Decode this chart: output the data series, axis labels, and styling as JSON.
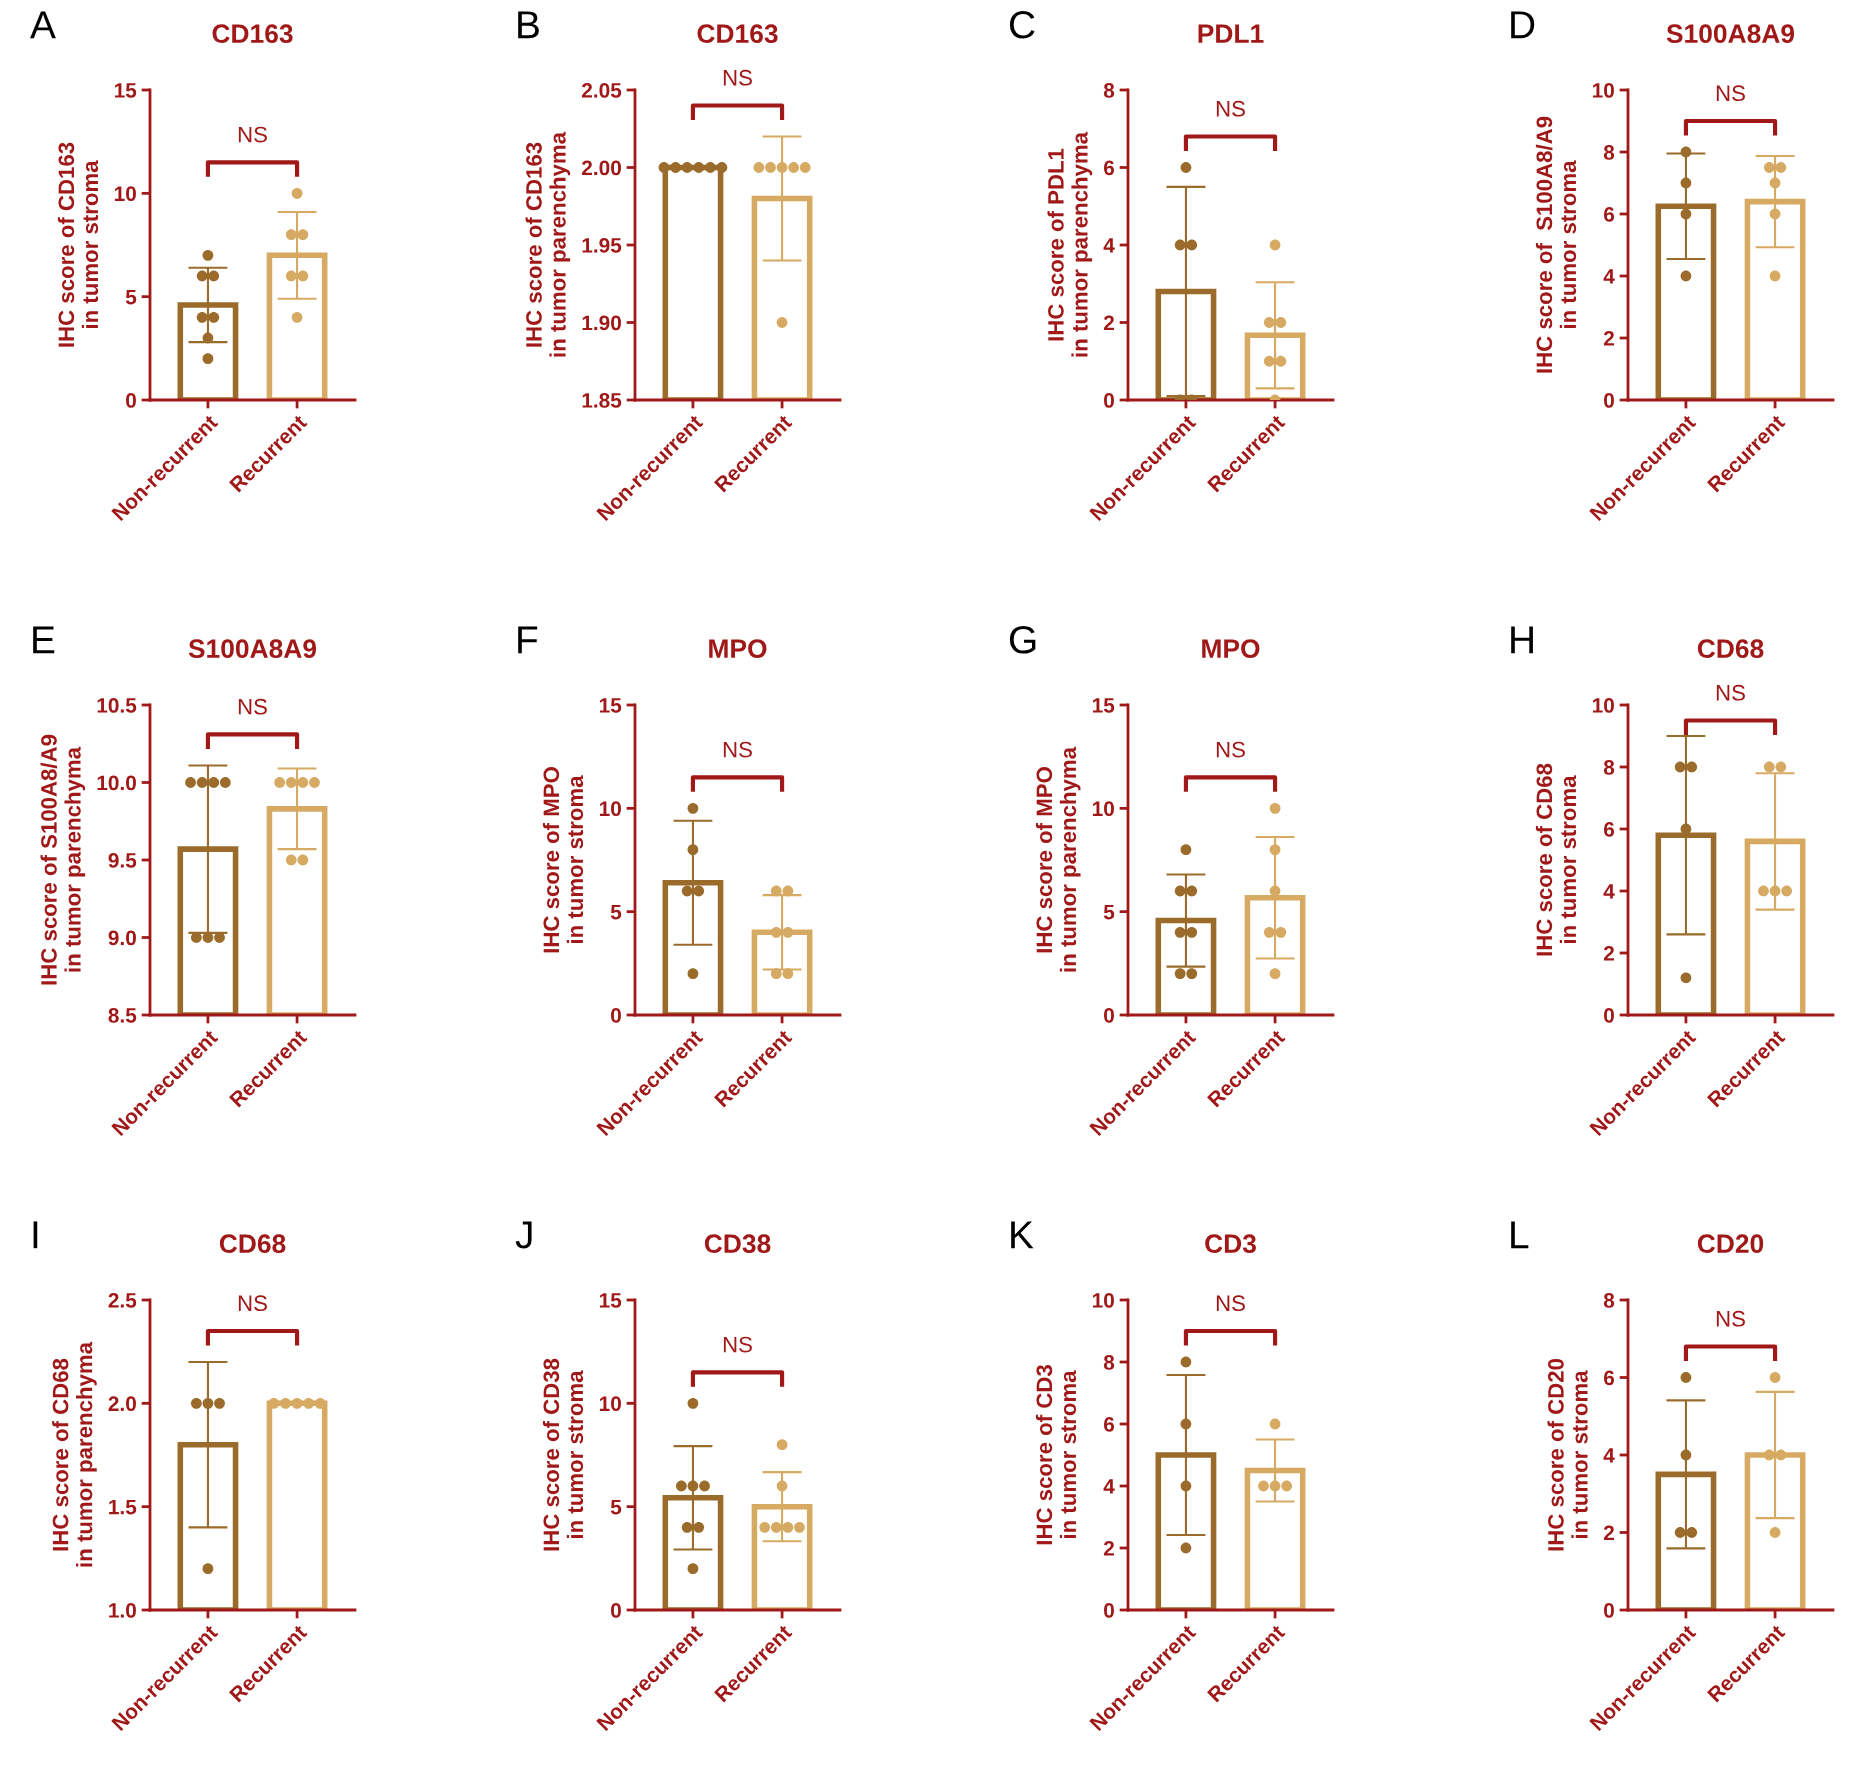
{
  "chart_data": [
    {
      "type": "bar",
      "title": "CD163",
      "ylabel": "IHC score of CD163\nin tumor stroma",
      "annotations": [
        "A",
        "NS"
      ],
      "categories": [
        "Non-recurrent",
        "Recurrent"
      ],
      "ylim": [
        0,
        15
      ],
      "yticks": [
        0,
        5,
        10,
        15
      ],
      "series": [
        {
          "type": "bar",
          "values": [
            4.6,
            7.0
          ],
          "errors": [
            1.8,
            2.1
          ],
          "colors": [
            "#9a6b2a",
            "#d6aa62"
          ]
        },
        {
          "type": "scatter",
          "color": "#9a6b2a",
          "x": [
            "Non-recurrent",
            "Non-recurrent",
            "Non-recurrent",
            "Non-recurrent",
            "Non-recurrent",
            "Non-recurrent",
            "Non-recurrent"
          ],
          "values": [
            7,
            6,
            6,
            4,
            4,
            3,
            2
          ]
        },
        {
          "type": "scatter",
          "color": "#d6aa62",
          "x": [
            "Recurrent",
            "Recurrent",
            "Recurrent",
            "Recurrent",
            "Recurrent",
            "Recurrent"
          ],
          "values": [
            10,
            8,
            8,
            6,
            6,
            4
          ]
        }
      ]
    },
    {
      "type": "bar",
      "title": "CD163",
      "ylabel": "IHC score of CD163\nin tumor parenchyma",
      "annotations": [
        "B",
        "NS"
      ],
      "categories": [
        "Non-recurrent",
        "Recurrent"
      ],
      "ylim": [
        1.85,
        2.05
      ],
      "yticks": [
        1.85,
        {
          "value": 1.9,
          "label": "1.90"
        },
        1.95,
        {
          "value": 2.0,
          "label": "2.00"
        },
        2.05
      ],
      "series": [
        {
          "type": "bar",
          "values": [
            2.0,
            1.98
          ],
          "errors": [
            null,
            0.04
          ],
          "colors": [
            "#9a6b2a",
            "#d6aa62"
          ]
        },
        {
          "type": "scatter",
          "color": "#9a6b2a",
          "x": [
            "Non-recurrent",
            "Non-recurrent",
            "Non-recurrent",
            "Non-recurrent",
            "Non-recurrent",
            "Non-recurrent"
          ],
          "values": [
            2.0,
            2.0,
            2.0,
            2.0,
            2.0,
            2.0
          ]
        },
        {
          "type": "scatter",
          "color": "#d6aa62",
          "x": [
            "Recurrent",
            "Recurrent",
            "Recurrent",
            "Recurrent",
            "Recurrent",
            "Recurrent"
          ],
          "values": [
            2.0,
            2.0,
            2.0,
            2.0,
            2.0,
            1.9
          ]
        }
      ]
    },
    {
      "type": "bar",
      "title": "PDL1",
      "ylabel": "IHC score of PDL1\nin tumor parenchyma",
      "annotations": [
        "C",
        "NS"
      ],
      "categories": [
        "Non-recurrent",
        "Recurrent"
      ],
      "ylim": [
        0,
        8
      ],
      "yticks": [
        0,
        2,
        4,
        6,
        8
      ],
      "series": [
        {
          "type": "bar",
          "values": [
            2.8,
            1.67
          ],
          "errors": [
            2.7,
            1.37
          ],
          "colors": [
            "#9a6b2a",
            "#d6aa62"
          ]
        },
        {
          "type": "scatter",
          "color": "#9a6b2a",
          "x": [
            "Non-recurrent",
            "Non-recurrent",
            "Non-recurrent",
            "Non-recurrent",
            "Non-recurrent"
          ],
          "values": [
            6,
            4,
            4,
            0,
            0
          ]
        },
        {
          "type": "scatter",
          "color": "#d6aa62",
          "x": [
            "Recurrent",
            "Recurrent",
            "Recurrent",
            "Recurrent",
            "Recurrent",
            "Recurrent"
          ],
          "values": [
            4,
            2,
            2,
            1,
            1,
            0
          ]
        }
      ]
    },
    {
      "type": "bar",
      "title": "S100A8A9",
      "ylabel": "IHC score of  S100A8/A9\nin tumor stroma",
      "annotations": [
        "D",
        "NS"
      ],
      "categories": [
        "Non-recurrent",
        "Recurrent"
      ],
      "ylim": [
        0,
        10
      ],
      "yticks": [
        0,
        2,
        4,
        6,
        8,
        10
      ],
      "series": [
        {
          "type": "bar",
          "values": [
            6.25,
            6.4
          ],
          "errors": [
            1.7,
            1.47
          ],
          "colors": [
            "#9a6b2a",
            "#d6aa62"
          ]
        },
        {
          "type": "scatter",
          "color": "#9a6b2a",
          "x": [
            "Non-recurrent",
            "Non-recurrent",
            "Non-recurrent",
            "Non-recurrent"
          ],
          "values": [
            8,
            7,
            6,
            4
          ]
        },
        {
          "type": "scatter",
          "color": "#d6aa62",
          "x": [
            "Recurrent",
            "Recurrent",
            "Recurrent",
            "Recurrent",
            "Recurrent"
          ],
          "values": [
            7.5,
            7.5,
            7,
            6,
            4
          ]
        }
      ]
    },
    {
      "type": "bar",
      "title": "S100A8A9",
      "ylabel": "IHC score of S100A8/A9\nin tumor parenchyma",
      "annotations": [
        "E",
        "NS"
      ],
      "categories": [
        "Non-recurrent",
        "Recurrent"
      ],
      "ylim": [
        8.5,
        10.5
      ],
      "yticks": [
        8.5,
        {
          "value": 9,
          "label": "9.0"
        },
        9.5,
        {
          "value": 10,
          "label": "10.0"
        },
        10.5
      ],
      "series": [
        {
          "type": "bar",
          "values": [
            9.57,
            9.83
          ],
          "errors": [
            0.54,
            0.26
          ],
          "colors": [
            "#9a6b2a",
            "#d6aa62"
          ]
        },
        {
          "type": "scatter",
          "color": "#9a6b2a",
          "x": [
            "Non-recurrent",
            "Non-recurrent",
            "Non-recurrent",
            "Non-recurrent",
            "Non-recurrent",
            "Non-recurrent",
            "Non-recurrent"
          ],
          "values": [
            10,
            10,
            10,
            10,
            9,
            9,
            9
          ]
        },
        {
          "type": "scatter",
          "color": "#d6aa62",
          "x": [
            "Recurrent",
            "Recurrent",
            "Recurrent",
            "Recurrent",
            "Recurrent",
            "Recurrent"
          ],
          "values": [
            10,
            10,
            10,
            10,
            9.5,
            9.5
          ]
        }
      ]
    },
    {
      "type": "bar",
      "title": "MPO",
      "ylabel": "IHC score of MPO\nin tumor stroma",
      "annotations": [
        "F",
        "NS"
      ],
      "categories": [
        "Non-recurrent",
        "Recurrent"
      ],
      "ylim": [
        0,
        15
      ],
      "yticks": [
        0,
        5,
        10,
        15
      ],
      "series": [
        {
          "type": "bar",
          "values": [
            6.4,
            4.0
          ],
          "errors": [
            3.0,
            1.8
          ],
          "colors": [
            "#9a6b2a",
            "#d6aa62"
          ]
        },
        {
          "type": "scatter",
          "color": "#9a6b2a",
          "x": [
            "Non-recurrent",
            "Non-recurrent",
            "Non-recurrent",
            "Non-recurrent",
            "Non-recurrent"
          ],
          "values": [
            10,
            8,
            6,
            6,
            2
          ]
        },
        {
          "type": "scatter",
          "color": "#d6aa62",
          "x": [
            "Recurrent",
            "Recurrent",
            "Recurrent",
            "Recurrent",
            "Recurrent",
            "Recurrent"
          ],
          "values": [
            6,
            6,
            4,
            4,
            2,
            2
          ]
        }
      ]
    },
    {
      "type": "bar",
      "title": "MPO",
      "ylabel": "IHC score of MPO\nin tumor parenchyma",
      "annotations": [
        "G",
        "NS"
      ],
      "categories": [
        "Non-recurrent",
        "Recurrent"
      ],
      "ylim": [
        0,
        15
      ],
      "yticks": [
        0,
        5,
        10,
        15
      ],
      "series": [
        {
          "type": "bar",
          "values": [
            4.57,
            5.67
          ],
          "errors": [
            2.23,
            2.94
          ],
          "colors": [
            "#9a6b2a",
            "#d6aa62"
          ]
        },
        {
          "type": "scatter",
          "color": "#9a6b2a",
          "x": [
            "Non-recurrent",
            "Non-recurrent",
            "Non-recurrent",
            "Non-recurrent",
            "Non-recurrent",
            "Non-recurrent",
            "Non-recurrent"
          ],
          "values": [
            8,
            6,
            6,
            4,
            4,
            2,
            2
          ]
        },
        {
          "type": "scatter",
          "color": "#d6aa62",
          "x": [
            "Recurrent",
            "Recurrent",
            "Recurrent",
            "Recurrent",
            "Recurrent",
            "Recurrent"
          ],
          "values": [
            10,
            8,
            6,
            4,
            4,
            2
          ]
        }
      ]
    },
    {
      "type": "bar",
      "title": "CD68",
      "ylabel": "IHC score of CD68\nin tumor stroma",
      "annotations": [
        "H",
        "NS"
      ],
      "categories": [
        "Non-recurrent",
        "Recurrent"
      ],
      "ylim": [
        0,
        10
      ],
      "yticks": [
        0,
        2,
        4,
        6,
        8,
        10
      ],
      "series": [
        {
          "type": "bar",
          "values": [
            5.8,
            5.6
          ],
          "errors": [
            3.2,
            2.2
          ],
          "colors": [
            "#9a6b2a",
            "#d6aa62"
          ]
        },
        {
          "type": "scatter",
          "color": "#9a6b2a",
          "x": [
            "Non-recurrent",
            "Non-recurrent",
            "Non-recurrent",
            "Non-recurrent"
          ],
          "values": [
            8,
            8,
            6,
            1.2
          ]
        },
        {
          "type": "scatter",
          "color": "#d6aa62",
          "x": [
            "Recurrent",
            "Recurrent",
            "Recurrent",
            "Recurrent",
            "Recurrent"
          ],
          "values": [
            8,
            8,
            4,
            4,
            4
          ]
        }
      ]
    },
    {
      "type": "bar",
      "title": "CD68",
      "ylabel": "IHC score of CD68\nin tumor parenchyma",
      "annotations": [
        "I",
        "NS"
      ],
      "categories": [
        "Non-recurrent",
        "Recurrent"
      ],
      "ylim": [
        1.0,
        2.5
      ],
      "yticks": [
        {
          "value": 1,
          "label": "1.0"
        },
        1.5,
        {
          "value": 2,
          "label": "2.0"
        },
        2.5
      ],
      "series": [
        {
          "type": "bar",
          "values": [
            1.8,
            2.0
          ],
          "errors": [
            0.4,
            null
          ],
          "colors": [
            "#9a6b2a",
            "#d6aa62"
          ]
        },
        {
          "type": "scatter",
          "color": "#9a6b2a",
          "x": [
            "Non-recurrent",
            "Non-recurrent",
            "Non-recurrent",
            "Non-recurrent"
          ],
          "values": [
            2,
            2,
            2,
            1.2
          ]
        },
        {
          "type": "scatter",
          "color": "#d6aa62",
          "x": [
            "Recurrent",
            "Recurrent",
            "Recurrent",
            "Recurrent",
            "Recurrent"
          ],
          "values": [
            2,
            2,
            2,
            2,
            2
          ]
        }
      ]
    },
    {
      "type": "bar",
      "title": "CD38",
      "ylabel": "IHC score of CD38\nin tumor stroma",
      "annotations": [
        "J",
        "NS"
      ],
      "categories": [
        "Non-recurrent",
        "Recurrent"
      ],
      "ylim": [
        0,
        15
      ],
      "yticks": [
        0,
        5,
        10,
        15
      ],
      "series": [
        {
          "type": "bar",
          "values": [
            5.43,
            5.0
          ],
          "errors": [
            2.5,
            1.67
          ],
          "colors": [
            "#9a6b2a",
            "#d6aa62"
          ]
        },
        {
          "type": "scatter",
          "color": "#9a6b2a",
          "x": [
            "Non-recurrent",
            "Non-recurrent",
            "Non-recurrent",
            "Non-recurrent",
            "Non-recurrent",
            "Non-recurrent",
            "Non-recurrent"
          ],
          "values": [
            10,
            6,
            6,
            6,
            4,
            4,
            2
          ]
        },
        {
          "type": "scatter",
          "color": "#d6aa62",
          "x": [
            "Recurrent",
            "Recurrent",
            "Recurrent",
            "Recurrent",
            "Recurrent",
            "Recurrent"
          ],
          "values": [
            8,
            6,
            4,
            4,
            4,
            4
          ]
        }
      ]
    },
    {
      "type": "bar",
      "title": "CD3",
      "ylabel": "IHC score of CD3\nin tumor stroma",
      "annotations": [
        "K",
        "NS"
      ],
      "categories": [
        "Non-recurrent",
        "Recurrent"
      ],
      "ylim": [
        0,
        10
      ],
      "yticks": [
        0,
        2,
        4,
        6,
        8,
        10
      ],
      "series": [
        {
          "type": "bar",
          "values": [
            5.0,
            4.5
          ],
          "errors": [
            2.58,
            1.0
          ],
          "colors": [
            "#9a6b2a",
            "#d6aa62"
          ]
        },
        {
          "type": "scatter",
          "color": "#9a6b2a",
          "x": [
            "Non-recurrent",
            "Non-recurrent",
            "Non-recurrent",
            "Non-recurrent"
          ],
          "values": [
            8,
            6,
            4,
            2
          ]
        },
        {
          "type": "scatter",
          "color": "#d6aa62",
          "x": [
            "Recurrent",
            "Recurrent",
            "Recurrent",
            "Recurrent"
          ],
          "values": [
            6,
            4,
            4,
            4
          ]
        }
      ]
    },
    {
      "type": "bar",
      "title": "CD20",
      "ylabel": "IHC score of CD20\nin tumor stroma",
      "annotations": [
        "L",
        "NS"
      ],
      "categories": [
        "Non-recurrent",
        "Recurrent"
      ],
      "ylim": [
        0,
        8
      ],
      "yticks": [
        0,
        2,
        4,
        6,
        8
      ],
      "series": [
        {
          "type": "bar",
          "values": [
            3.5,
            4.0
          ],
          "errors": [
            1.91,
            1.63
          ],
          "colors": [
            "#9a6b2a",
            "#d6aa62"
          ]
        },
        {
          "type": "scatter",
          "color": "#9a6b2a",
          "x": [
            "Non-recurrent",
            "Non-recurrent",
            "Non-recurrent",
            "Non-recurrent"
          ],
          "values": [
            6,
            4,
            2,
            2
          ]
        },
        {
          "type": "scatter",
          "color": "#d6aa62",
          "x": [
            "Recurrent",
            "Recurrent",
            "Recurrent",
            "Recurrent"
          ],
          "values": [
            6,
            4,
            4,
            2
          ]
        }
      ]
    }
  ]
}
